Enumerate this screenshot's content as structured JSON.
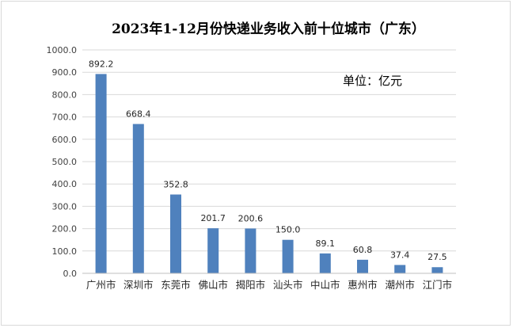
{
  "chart_data": {
    "type": "bar",
    "title": "2023年1-12月份快递业务收入前十位城市（广东）",
    "unit_note": "单位：亿元",
    "categories": [
      "广州市",
      "深圳市",
      "东莞市",
      "佛山市",
      "揭阳市",
      "汕头市",
      "中山市",
      "惠州市",
      "潮州市",
      "江门市"
    ],
    "values": [
      892.2,
      668.4,
      352.8,
      201.7,
      200.6,
      150.0,
      89.1,
      60.8,
      37.4,
      27.5
    ],
    "value_labels": [
      "892.2",
      "668.4",
      "352.8",
      "201.7",
      "200.6",
      "150.0",
      "89.1",
      "60.8",
      "37.4",
      "27.5"
    ],
    "ylim": [
      0,
      1000
    ],
    "yticks": [
      "0.0",
      "100.0",
      "200.0",
      "300.0",
      "400.0",
      "500.0",
      "600.0",
      "700.0",
      "800.0",
      "900.0",
      "1000.0"
    ],
    "grid": true,
    "legend": "none",
    "bar_color": "#4f81bd",
    "grid_color": "#d9d9d9"
  }
}
